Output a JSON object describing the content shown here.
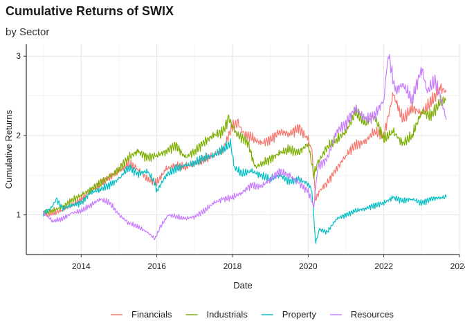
{
  "chart_data": {
    "type": "line",
    "title": "Cumulative Returns of SWIX",
    "subtitle": "by Sector",
    "xlabel": "Date",
    "ylabel": "Cumulative Returns",
    "xlim": [
      2012.55,
      2024.0
    ],
    "ylim": [
      0.5,
      3.15
    ],
    "x_ticks": [
      2014,
      2016,
      2018,
      2020,
      2022,
      2024
    ],
    "x_tick_labels": [
      "2014",
      "2016",
      "2018",
      "2020",
      "2022",
      "2024"
    ],
    "y_ticks": [
      1,
      2,
      3
    ],
    "y_tick_labels": [
      "1",
      "2",
      "3"
    ],
    "grid": true,
    "legend_position": "bottom",
    "series": [
      {
        "name": "Financials",
        "color": "#F8766D",
        "x": [
          2013.0,
          2013.25,
          2013.5,
          2013.75,
          2014.0,
          2014.25,
          2014.5,
          2014.75,
          2015.0,
          2015.25,
          2015.5,
          2015.75,
          2016.0,
          2016.25,
          2016.5,
          2016.75,
          2017.0,
          2017.25,
          2017.5,
          2017.75,
          2018.0,
          2018.15,
          2018.3,
          2018.5,
          2018.75,
          2019.0,
          2019.25,
          2019.5,
          2019.75,
          2020.0,
          2020.1,
          2020.2,
          2020.3,
          2020.5,
          2020.75,
          2021.0,
          2021.25,
          2021.5,
          2021.75,
          2022.0,
          2022.25,
          2022.5,
          2022.75,
          2023.0,
          2023.25,
          2023.5,
          2023.65
        ],
        "y": [
          1.0,
          1.02,
          1.06,
          1.12,
          1.2,
          1.3,
          1.38,
          1.47,
          1.55,
          1.65,
          1.58,
          1.45,
          1.4,
          1.58,
          1.62,
          1.6,
          1.65,
          1.7,
          1.75,
          1.82,
          2.12,
          2.15,
          2.02,
          1.98,
          1.9,
          1.95,
          2.05,
          2.02,
          2.1,
          1.95,
          1.8,
          1.2,
          1.3,
          1.4,
          1.58,
          1.75,
          1.88,
          1.92,
          2.05,
          2.0,
          2.52,
          2.2,
          2.35,
          2.28,
          2.42,
          2.6,
          2.55
        ]
      },
      {
        "name": "Industrials",
        "color": "#7CAE00",
        "x": [
          2013.0,
          2013.25,
          2013.5,
          2013.75,
          2014.0,
          2014.25,
          2014.5,
          2014.75,
          2015.0,
          2015.25,
          2015.5,
          2015.75,
          2016.0,
          2016.25,
          2016.5,
          2016.75,
          2017.0,
          2017.25,
          2017.5,
          2017.75,
          2017.9,
          2018.1,
          2018.4,
          2018.6,
          2018.8,
          2019.0,
          2019.25,
          2019.5,
          2019.75,
          2020.0,
          2020.15,
          2020.25,
          2020.5,
          2020.75,
          2021.0,
          2021.25,
          2021.5,
          2021.75,
          2022.0,
          2022.25,
          2022.5,
          2022.75,
          2023.0,
          2023.25,
          2023.5,
          2023.65
        ],
        "y": [
          1.02,
          1.05,
          1.1,
          1.18,
          1.25,
          1.32,
          1.4,
          1.48,
          1.58,
          1.72,
          1.8,
          1.72,
          1.75,
          1.8,
          1.88,
          1.72,
          1.8,
          1.92,
          2.0,
          2.05,
          2.22,
          2.02,
          1.92,
          1.6,
          1.65,
          1.7,
          1.78,
          1.82,
          1.78,
          1.9,
          1.5,
          1.65,
          1.85,
          1.95,
          2.05,
          2.3,
          2.15,
          2.25,
          1.95,
          2.05,
          1.9,
          2.0,
          2.3,
          2.25,
          2.42,
          2.45
        ]
      },
      {
        "name": "Property",
        "color": "#00BFC4",
        "x": [
          2013.0,
          2013.2,
          2013.35,
          2013.5,
          2013.75,
          2014.0,
          2014.25,
          2014.5,
          2014.75,
          2015.0,
          2015.25,
          2015.5,
          2015.75,
          2015.95,
          2016.0,
          2016.25,
          2016.5,
          2016.75,
          2017.0,
          2017.25,
          2017.5,
          2017.75,
          2017.95,
          2018.05,
          2018.25,
          2018.5,
          2018.75,
          2019.0,
          2019.25,
          2019.5,
          2019.75,
          2020.0,
          2020.1,
          2020.2,
          2020.3,
          2020.5,
          2020.75,
          2021.0,
          2021.25,
          2021.5,
          2021.75,
          2022.0,
          2022.25,
          2022.5,
          2022.75,
          2023.0,
          2023.25,
          2023.5,
          2023.65
        ],
        "y": [
          1.02,
          1.08,
          1.2,
          1.08,
          1.12,
          1.15,
          1.28,
          1.32,
          1.38,
          1.45,
          1.6,
          1.52,
          1.55,
          1.4,
          1.3,
          1.5,
          1.58,
          1.62,
          1.65,
          1.72,
          1.75,
          1.82,
          1.9,
          1.6,
          1.52,
          1.55,
          1.5,
          1.45,
          1.5,
          1.42,
          1.44,
          1.4,
          1.3,
          0.65,
          0.82,
          0.78,
          0.95,
          1.0,
          1.05,
          1.08,
          1.12,
          1.15,
          1.22,
          1.18,
          1.2,
          1.15,
          1.2,
          1.22,
          1.22
        ]
      },
      {
        "name": "Resources",
        "color": "#C77CFF",
        "x": [
          2013.0,
          2013.25,
          2013.5,
          2013.75,
          2014.0,
          2014.25,
          2014.5,
          2014.75,
          2015.0,
          2015.25,
          2015.5,
          2015.75,
          2015.95,
          2016.1,
          2016.3,
          2016.5,
          2016.75,
          2017.0,
          2017.25,
          2017.5,
          2017.75,
          2018.0,
          2018.25,
          2018.5,
          2018.75,
          2019.0,
          2019.25,
          2019.5,
          2019.75,
          2020.0,
          2020.15,
          2020.25,
          2020.5,
          2020.75,
          2021.0,
          2021.25,
          2021.5,
          2021.75,
          2022.0,
          2022.12,
          2022.3,
          2022.5,
          2022.75,
          2023.0,
          2023.15,
          2023.35,
          2023.55,
          2023.65
        ],
        "y": [
          1.03,
          0.92,
          0.95,
          1.02,
          1.05,
          1.12,
          1.2,
          1.15,
          1.0,
          0.9,
          0.85,
          0.78,
          0.7,
          0.85,
          1.0,
          0.98,
          0.95,
          0.98,
          1.05,
          1.15,
          1.2,
          1.22,
          1.28,
          1.38,
          1.35,
          1.45,
          1.55,
          1.5,
          1.4,
          1.3,
          1.1,
          1.6,
          1.7,
          2.05,
          2.15,
          2.35,
          2.2,
          2.25,
          2.45,
          3.05,
          2.55,
          2.65,
          2.45,
          2.85,
          2.55,
          2.7,
          2.4,
          2.2
        ]
      }
    ]
  }
}
